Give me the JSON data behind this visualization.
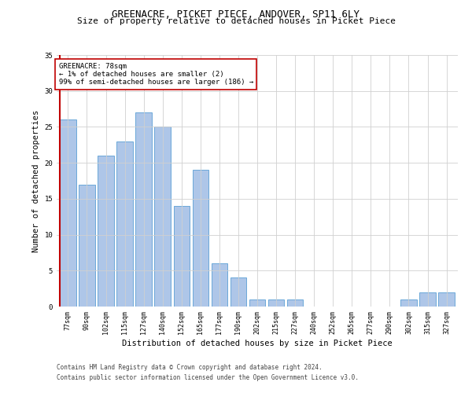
{
  "title1": "GREENACRE, PICKET PIECE, ANDOVER, SP11 6LY",
  "title2": "Size of property relative to detached houses in Picket Piece",
  "xlabel": "Distribution of detached houses by size in Picket Piece",
  "ylabel": "Number of detached properties",
  "categories": [
    "77sqm",
    "90sqm",
    "102sqm",
    "115sqm",
    "127sqm",
    "140sqm",
    "152sqm",
    "165sqm",
    "177sqm",
    "190sqm",
    "202sqm",
    "215sqm",
    "227sqm",
    "240sqm",
    "252sqm",
    "265sqm",
    "277sqm",
    "290sqm",
    "302sqm",
    "315sqm",
    "327sqm"
  ],
  "values": [
    26,
    17,
    21,
    23,
    27,
    25,
    14,
    19,
    6,
    4,
    1,
    1,
    1,
    0,
    0,
    0,
    0,
    0,
    1,
    2,
    2
  ],
  "bar_color": "#aec6e8",
  "bar_edgecolor": "#5a9fd4",
  "highlight_color": "#c00000",
  "annotation_box_color": "#ffffff",
  "annotation_border_color": "#c00000",
  "annotation_text": "GREENACRE: 78sqm\n← 1% of detached houses are smaller (2)\n99% of semi-detached houses are larger (186) →",
  "ylim": [
    0,
    35
  ],
  "yticks": [
    0,
    5,
    10,
    15,
    20,
    25,
    30,
    35
  ],
  "highlight_bar_index": 0,
  "footer1": "Contains HM Land Registry data © Crown copyright and database right 2024.",
  "footer2": "Contains public sector information licensed under the Open Government Licence v3.0.",
  "bg_color": "#ffffff",
  "grid_color": "#d0d0d0",
  "title_fontsize": 9,
  "subtitle_fontsize": 8,
  "tick_fontsize": 6,
  "ylabel_fontsize": 7.5,
  "xlabel_fontsize": 7.5,
  "annotation_fontsize": 6.5,
  "footer_fontsize": 5.5
}
